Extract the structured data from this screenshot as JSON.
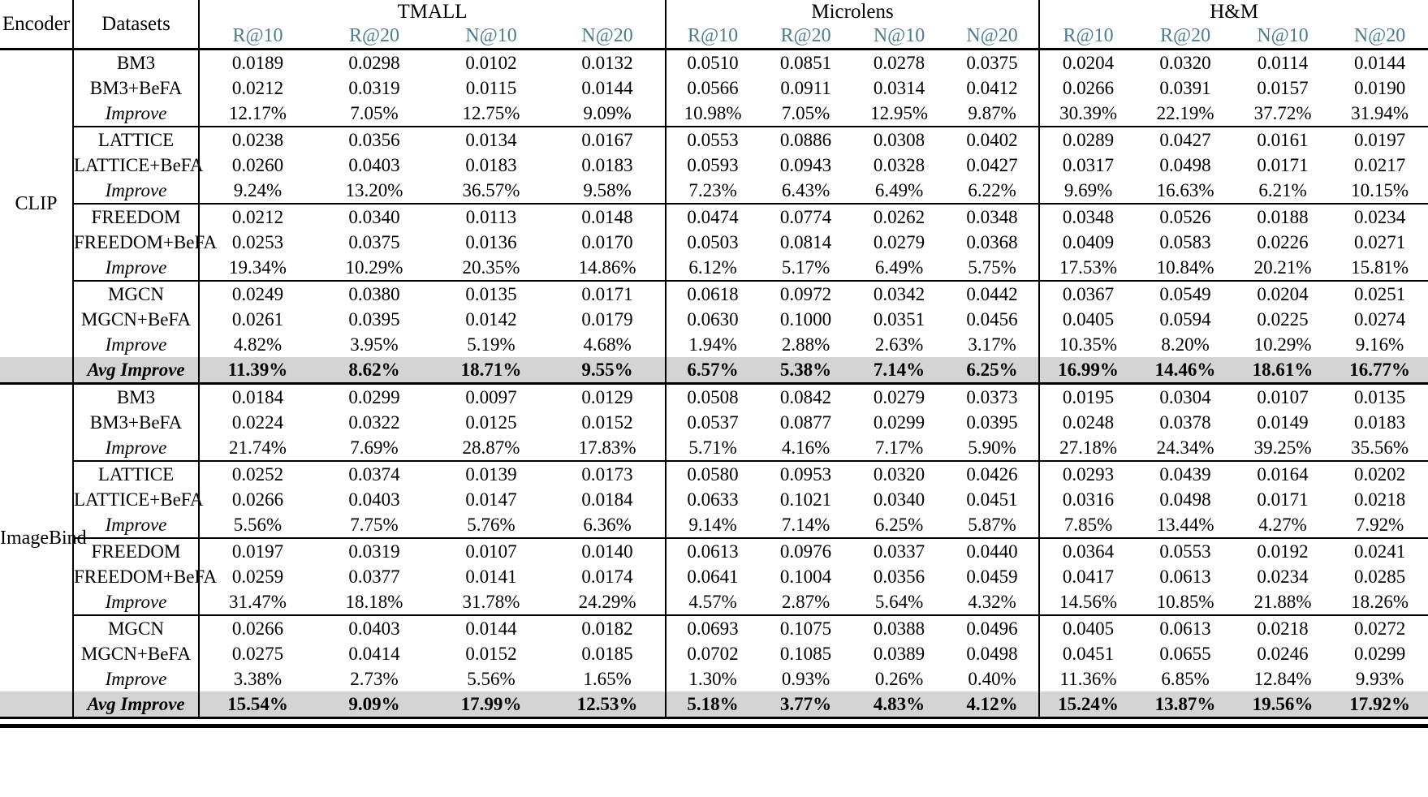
{
  "header": {
    "encoder": "Encoder",
    "datasets": "Datasets",
    "groups": [
      "TMALL",
      "Microlens",
      "H&M"
    ],
    "metrics": [
      "R@10",
      "R@20",
      "N@10",
      "N@20"
    ]
  },
  "colors": {
    "metric_header": "#4e7d91",
    "highlight_row_bg": "#d4d4d4"
  },
  "sections": [
    {
      "encoder": "CLIP",
      "blocks": [
        {
          "rows": [
            {
              "label": "BM3",
              "values": [
                "0.0189",
                "0.0298",
                "0.0102",
                "0.0132",
                "0.0510",
                "0.0851",
                "0.0278",
                "0.0375",
                "0.0204",
                "0.0320",
                "0.0114",
                "0.0144"
              ]
            },
            {
              "label": "BM3+BeFA",
              "values": [
                "0.0212",
                "0.0319",
                "0.0115",
                "0.0144",
                "0.0566",
                "0.0911",
                "0.0314",
                "0.0412",
                "0.0266",
                "0.0391",
                "0.0157",
                "0.0190"
              ]
            },
            {
              "label": "Improve",
              "values": [
                "12.17%",
                "7.05%",
                "12.75%",
                "9.09%",
                "10.98%",
                "7.05%",
                "12.95%",
                "9.87%",
                "30.39%",
                "22.19%",
                "37.72%",
                "31.94%"
              ]
            }
          ]
        },
        {
          "rows": [
            {
              "label": "LATTICE",
              "values": [
                "0.0238",
                "0.0356",
                "0.0134",
                "0.0167",
                "0.0553",
                "0.0886",
                "0.0308",
                "0.0402",
                "0.0289",
                "0.0427",
                "0.0161",
                "0.0197"
              ]
            },
            {
              "label": "LATTICE+BeFA",
              "values": [
                "0.0260",
                "0.0403",
                "0.0183",
                "0.0183",
                "0.0593",
                "0.0943",
                "0.0328",
                "0.0427",
                "0.0317",
                "0.0498",
                "0.0171",
                "0.0217"
              ]
            },
            {
              "label": "Improve",
              "values": [
                "9.24%",
                "13.20%",
                "36.57%",
                "9.58%",
                "7.23%",
                "6.43%",
                "6.49%",
                "6.22%",
                "9.69%",
                "16.63%",
                "6.21%",
                "10.15%"
              ]
            }
          ]
        },
        {
          "rows": [
            {
              "label": "FREEDOM",
              "values": [
                "0.0212",
                "0.0340",
                "0.0113",
                "0.0148",
                "0.0474",
                "0.0774",
                "0.0262",
                "0.0348",
                "0.0348",
                "0.0526",
                "0.0188",
                "0.0234"
              ]
            },
            {
              "label": "FREEDOM+BeFA",
              "values": [
                "0.0253",
                "0.0375",
                "0.0136",
                "0.0170",
                "0.0503",
                "0.0814",
                "0.0279",
                "0.0368",
                "0.0409",
                "0.0583",
                "0.0226",
                "0.0271"
              ]
            },
            {
              "label": "Improve",
              "values": [
                "19.34%",
                "10.29%",
                "20.35%",
                "14.86%",
                "6.12%",
                "5.17%",
                "6.49%",
                "5.75%",
                "17.53%",
                "10.84%",
                "20.21%",
                "15.81%"
              ]
            }
          ]
        },
        {
          "rows": [
            {
              "label": "MGCN",
              "values": [
                "0.0249",
                "0.0380",
                "0.0135",
                "0.0171",
                "0.0618",
                "0.0972",
                "0.0342",
                "0.0442",
                "0.0367",
                "0.0549",
                "0.0204",
                "0.0251"
              ]
            },
            {
              "label": "MGCN+BeFA",
              "values": [
                "0.0261",
                "0.0395",
                "0.0142",
                "0.0179",
                "0.0630",
                "0.1000",
                "0.0351",
                "0.0456",
                "0.0405",
                "0.0594",
                "0.0225",
                "0.0274"
              ]
            },
            {
              "label": "Improve",
              "values": [
                "4.82%",
                "3.95%",
                "5.19%",
                "4.68%",
                "1.94%",
                "2.88%",
                "2.63%",
                "3.17%",
                "10.35%",
                "8.20%",
                "10.29%",
                "9.16%"
              ]
            }
          ]
        }
      ],
      "avg": {
        "label": "Avg Improve",
        "values": [
          "11.39%",
          "8.62%",
          "18.71%",
          "9.55%",
          "6.57%",
          "5.38%",
          "7.14%",
          "6.25%",
          "16.99%",
          "14.46%",
          "18.61%",
          "16.77%"
        ]
      }
    },
    {
      "encoder": "ImageBind",
      "blocks": [
        {
          "rows": [
            {
              "label": "BM3",
              "values": [
                "0.0184",
                "0.0299",
                "0.0097",
                "0.0129",
                "0.0508",
                "0.0842",
                "0.0279",
                "0.0373",
                "0.0195",
                "0.0304",
                "0.0107",
                "0.0135"
              ]
            },
            {
              "label": "BM3+BeFA",
              "values": [
                "0.0224",
                "0.0322",
                "0.0125",
                "0.0152",
                "0.0537",
                "0.0877",
                "0.0299",
                "0.0395",
                "0.0248",
                "0.0378",
                "0.0149",
                "0.0183"
              ]
            },
            {
              "label": "Improve",
              "values": [
                "21.74%",
                "7.69%",
                "28.87%",
                "17.83%",
                "5.71%",
                "4.16%",
                "7.17%",
                "5.90%",
                "27.18%",
                "24.34%",
                "39.25%",
                "35.56%"
              ]
            }
          ]
        },
        {
          "rows": [
            {
              "label": "LATTICE",
              "values": [
                "0.0252",
                "0.0374",
                "0.0139",
                "0.0173",
                "0.0580",
                "0.0953",
                "0.0320",
                "0.0426",
                "0.0293",
                "0.0439",
                "0.0164",
                "0.0202"
              ]
            },
            {
              "label": "LATTICE+BeFA",
              "values": [
                "0.0266",
                "0.0403",
                "0.0147",
                "0.0184",
                "0.0633",
                "0.1021",
                "0.0340",
                "0.0451",
                "0.0316",
                "0.0498",
                "0.0171",
                "0.0218"
              ]
            },
            {
              "label": "Improve",
              "values": [
                "5.56%",
                "7.75%",
                "5.76%",
                "6.36%",
                "9.14%",
                "7.14%",
                "6.25%",
                "5.87%",
                "7.85%",
                "13.44%",
                "4.27%",
                "7.92%"
              ]
            }
          ]
        },
        {
          "rows": [
            {
              "label": "FREEDOM",
              "values": [
                "0.0197",
                "0.0319",
                "0.0107",
                "0.0140",
                "0.0613",
                "0.0976",
                "0.0337",
                "0.0440",
                "0.0364",
                "0.0553",
                "0.0192",
                "0.0241"
              ]
            },
            {
              "label": "FREEDOM+BeFA",
              "values": [
                "0.0259",
                "0.0377",
                "0.0141",
                "0.0174",
                "0.0641",
                "0.1004",
                "0.0356",
                "0.0459",
                "0.0417",
                "0.0613",
                "0.0234",
                "0.0285"
              ]
            },
            {
              "label": "Improve",
              "values": [
                "31.47%",
                "18.18%",
                "31.78%",
                "24.29%",
                "4.57%",
                "2.87%",
                "5.64%",
                "4.32%",
                "14.56%",
                "10.85%",
                "21.88%",
                "18.26%"
              ]
            }
          ]
        },
        {
          "rows": [
            {
              "label": "MGCN",
              "values": [
                "0.0266",
                "0.0403",
                "0.0144",
                "0.0182",
                "0.0693",
                "0.1075",
                "0.0388",
                "0.0496",
                "0.0405",
                "0.0613",
                "0.0218",
                "0.0272"
              ]
            },
            {
              "label": "MGCN+BeFA",
              "values": [
                "0.0275",
                "0.0414",
                "0.0152",
                "0.0185",
                "0.0702",
                "0.1085",
                "0.0389",
                "0.0498",
                "0.0451",
                "0.0655",
                "0.0246",
                "0.0299"
              ]
            },
            {
              "label": "Improve",
              "values": [
                "3.38%",
                "2.73%",
                "5.56%",
                "1.65%",
                "1.30%",
                "0.93%",
                "0.26%",
                "0.40%",
                "11.36%",
                "6.85%",
                "12.84%",
                "9.93%"
              ]
            }
          ]
        }
      ],
      "avg": {
        "label": "Avg Improve",
        "values": [
          "15.54%",
          "9.09%",
          "17.99%",
          "12.53%",
          "5.18%",
          "3.77%",
          "4.83%",
          "4.12%",
          "15.24%",
          "13.87%",
          "19.56%",
          "17.92%"
        ]
      }
    }
  ]
}
